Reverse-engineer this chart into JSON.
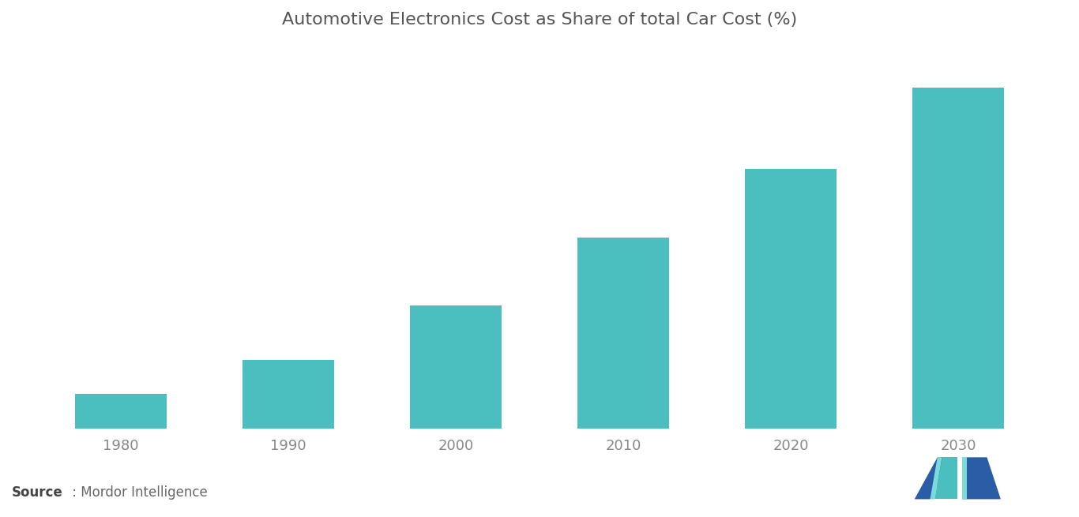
{
  "title": "Automotive Electronics Cost as Share of total Car Cost (%)",
  "categories": [
    "1980",
    "1990",
    "2000",
    "2010",
    "2020",
    "2030"
  ],
  "values": [
    5,
    10,
    18,
    28,
    38,
    50
  ],
  "bar_color": "#4BBFBF",
  "background_color": "#ffffff",
  "title_fontsize": 16,
  "title_color": "#555555",
  "tick_label_color": "#888888",
  "tick_label_fontsize": 13,
  "source_bold": "Source",
  "source_normal": " : Mordor Intelligence",
  "source_fontsize": 12,
  "bar_width": 0.55,
  "ylim": [
    0,
    56
  ],
  "logo_blue": "#2B5DA6",
  "logo_teal": "#4BBFBF",
  "logo_teal_light": "#7DDADA"
}
